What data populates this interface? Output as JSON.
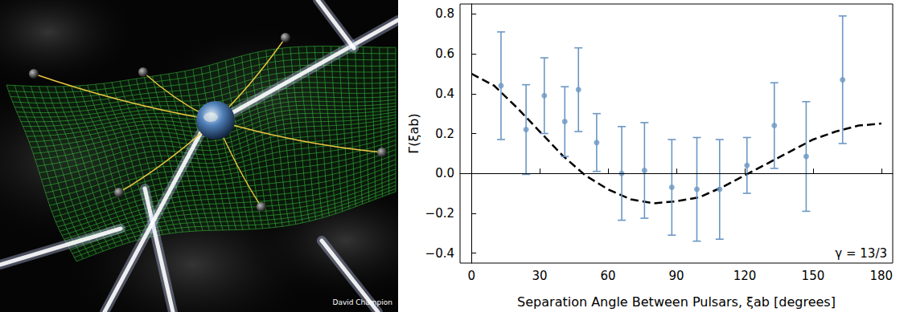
{
  "illustration": {
    "credit": "David Champion"
  },
  "chart_data": {
    "type": "scatter",
    "x_label": "Separation Angle Between Pulsars, ξab [degrees]",
    "y_label": "Γ(ξab)",
    "annotation": "γ = 13/3",
    "x": [
      13,
      24,
      32,
      41,
      47,
      55,
      66,
      76,
      88,
      99,
      109,
      121,
      133,
      147,
      163
    ],
    "values": [
      0.44,
      0.22,
      0.39,
      0.26,
      0.42,
      0.155,
      0.0,
      0.015,
      -0.07,
      -0.08,
      -0.08,
      0.04,
      0.24,
      0.085,
      0.47
    ],
    "errors": [
      0.27,
      0.225,
      0.19,
      0.175,
      0.21,
      0.145,
      0.235,
      0.24,
      0.24,
      0.26,
      0.25,
      0.14,
      0.215,
      0.275,
      0.32
    ],
    "color": "#6b97c3",
    "marker": "circle",
    "curve": {
      "x": [
        0,
        10,
        20,
        30,
        40,
        50,
        60,
        70,
        80,
        90,
        100,
        110,
        120,
        130,
        140,
        150,
        160,
        170,
        180
      ],
      "values": [
        0.5,
        0.44,
        0.33,
        0.21,
        0.09,
        -0.01,
        -0.08,
        -0.13,
        -0.15,
        -0.14,
        -0.12,
        -0.07,
        -0.01,
        0.05,
        0.11,
        0.17,
        0.21,
        0.24,
        0.25
      ],
      "color": "#000000",
      "line_style": "dashed"
    },
    "reference_line": 0,
    "xlim": [
      -5,
      185
    ],
    "xticks": [
      0,
      30,
      60,
      90,
      120,
      150,
      180
    ],
    "ylim": [
      -0.45,
      0.85
    ],
    "yticks": [
      {
        "value": -0.4,
        "label": "−0.4"
      },
      {
        "value": -0.2,
        "label": "−0.2"
      },
      {
        "value": 0,
        "label": "0.0"
      },
      {
        "value": 0.2,
        "label": "0.2"
      },
      {
        "value": 0.4,
        "label": "0.4"
      },
      {
        "value": 0.6,
        "label": "0.6"
      },
      {
        "value": 0.8,
        "label": "0.8"
      }
    ],
    "grid": false
  }
}
